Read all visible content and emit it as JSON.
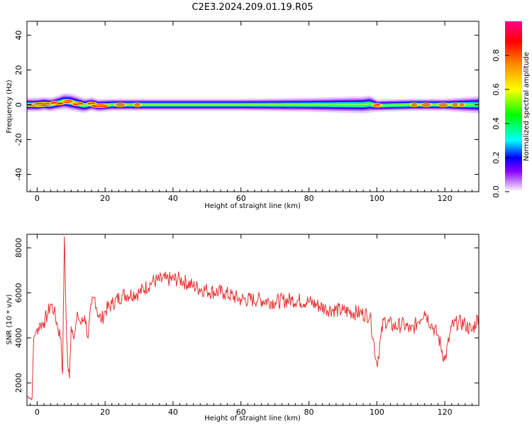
{
  "title": "C2E3.2024.209.01.19.R05",
  "chart_data": [
    {
      "type": "heatmap",
      "xlabel": "Height of straight line (km)",
      "ylabel": "Frequency (Hz)",
      "xlim": [
        -3,
        130
      ],
      "ylim": [
        -50,
        48
      ],
      "x_ticks": [
        0,
        20,
        40,
        60,
        80,
        100,
        120
      ],
      "y_ticks": [
        -40,
        -20,
        0,
        20,
        40
      ],
      "x_tick_labels": [
        "0",
        "20",
        "40",
        "60",
        "80",
        "100",
        "120"
      ],
      "y_tick_labels": [
        "-40",
        "-20",
        "0",
        "20",
        "40"
      ],
      "colorbar": {
        "label": "Normalized spectral amplitude",
        "range": [
          0,
          1
        ],
        "ticks": [
          0.0,
          0.2,
          0.4,
          0.6,
          0.8
        ],
        "tick_labels": [
          "0.0",
          "0.2",
          "0.4",
          "0.6",
          "0.8"
        ],
        "colors": [
          "#ffffff",
          "#cc88ff",
          "#8800ff",
          "#0000ff",
          "#00ffff",
          "#00ff00",
          "#ffff00",
          "#ff8800",
          "#ff0000",
          "#ff0088"
        ]
      },
      "ridge": {
        "center_frequency_hz": [
          [
            -3,
            0
          ],
          [
            0,
            0
          ],
          [
            2,
            0.5
          ],
          [
            4,
            0
          ],
          [
            6,
            1
          ],
          [
            8,
            2
          ],
          [
            10,
            1.5
          ],
          [
            12,
            0.5
          ],
          [
            14,
            -0.5
          ],
          [
            16,
            0.5
          ],
          [
            18,
            -0.5
          ],
          [
            22,
            0
          ],
          [
            40,
            0
          ],
          [
            60,
            0
          ],
          [
            80,
            0
          ],
          [
            96,
            0
          ],
          [
            98,
            0.5
          ],
          [
            100,
            -0.5
          ],
          [
            110,
            0
          ],
          [
            120,
            0
          ],
          [
            130,
            0
          ]
        ],
        "half_width_hz": [
          [
            -3,
            4
          ],
          [
            5,
            4
          ],
          [
            10,
            5
          ],
          [
            15,
            4
          ],
          [
            22,
            3.5
          ],
          [
            40,
            3.5
          ],
          [
            60,
            3.5
          ],
          [
            80,
            4
          ],
          [
            98,
            5
          ],
          [
            100,
            3.5
          ],
          [
            110,
            3.5
          ],
          [
            120,
            3.5
          ],
          [
            130,
            5
          ]
        ]
      }
    },
    {
      "type": "line",
      "xlabel": "Height of straight line (km)",
      "ylabel": "SNR (10 * v/v)",
      "xlim": [
        -3,
        130
      ],
      "ylim": [
        1000,
        8600
      ],
      "x_ticks": [
        0,
        20,
        40,
        60,
        80,
        100,
        120
      ],
      "y_ticks": [
        2000,
        4000,
        6000,
        8000
      ],
      "x_tick_labels": [
        "0",
        "20",
        "40",
        "60",
        "80",
        "100",
        "120"
      ],
      "y_tick_labels": [
        "2000",
        "4000",
        "6000",
        "8000"
      ],
      "color": "#e83030",
      "series": [
        {
          "x": [
            -3,
            -1.5,
            -1.2,
            -1,
            0,
            1,
            2,
            3,
            4,
            5,
            6,
            7,
            7.5,
            8,
            8.5,
            9,
            9.5,
            10,
            11,
            12,
            13,
            14,
            15,
            16,
            17,
            18,
            19,
            20,
            22,
            25,
            30,
            34,
            38,
            42,
            46,
            50,
            55,
            60,
            65,
            70,
            75,
            80,
            85,
            90,
            95,
            98,
            100,
            102,
            105,
            108,
            110,
            112,
            114,
            116,
            118,
            120,
            122,
            124,
            126,
            128,
            130
          ],
          "y": [
            1400,
            1300,
            3000,
            4000,
            4400,
            4600,
            4700,
            5000,
            5500,
            5200,
            4500,
            4000,
            2400,
            8500,
            5000,
            2800,
            2200,
            4500,
            4200,
            5000,
            4600,
            5000,
            4000,
            5500,
            5800,
            5000,
            4800,
            5200,
            5500,
            5900,
            6000,
            6500,
            6600,
            6600,
            6300,
            6100,
            6000,
            5700,
            5700,
            5600,
            5700,
            5600,
            5300,
            5200,
            5100,
            5000,
            2800,
            4800,
            4500,
            4600,
            4300,
            4700,
            5200,
            4600,
            4100,
            3000,
            4500,
            4700,
            4600,
            4300,
            5000
          ]
        }
      ]
    }
  ]
}
